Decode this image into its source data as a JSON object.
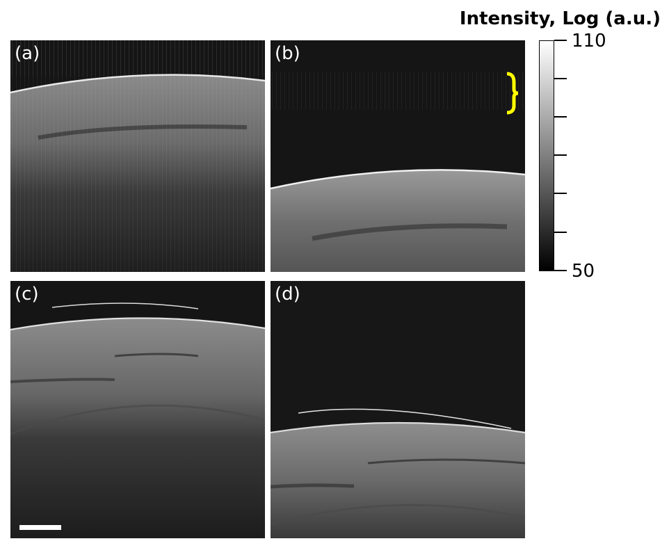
{
  "figure": {
    "colorbar": {
      "title": "Intensity, Log (a.u.)",
      "max_label": "110",
      "min_label": "50",
      "colormap": "gray",
      "range": [
        50,
        110
      ]
    },
    "panels": [
      {
        "label": "(a)"
      },
      {
        "label": "(b)"
      },
      {
        "label": "(c)"
      },
      {
        "label": "(d)"
      }
    ],
    "annotation_color": "#ffff00",
    "scalebar_color": "#ffffff"
  }
}
